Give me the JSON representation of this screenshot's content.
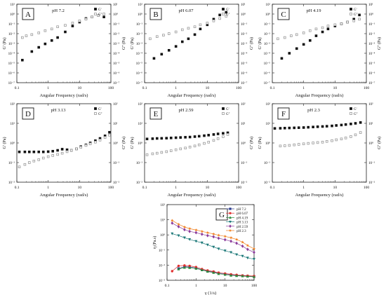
{
  "figure": {
    "panel_count": 7
  },
  "chart_data": [
    {
      "id": "A",
      "type": "scatter",
      "title": "pH 7.2",
      "xlabel": "Angular Frequency (rad/s)",
      "ylabel_left": "G' (Pa)",
      "ylabel_right": "G'' (Pa)",
      "xscale": "log",
      "yscale": "log",
      "xlim": [
        0.1,
        100
      ],
      "ylim": [
        1e-07,
        10
      ],
      "xticks": [
        "0.1",
        "1",
        "10",
        "100"
      ],
      "yticks": [
        "10⁻⁷",
        "10⁻⁶",
        "10⁻⁵",
        "10⁻⁴",
        "10⁻³",
        "10⁻²",
        "10⁻¹",
        "10⁰",
        "10¹"
      ],
      "legend": [
        "G'",
        "G''"
      ],
      "legend_position": "top-right",
      "series": [
        {
          "name": "G'",
          "marker": "filled-square",
          "x": [
            0.15,
            0.3,
            0.5,
            0.8,
            1.3,
            2,
            3.5,
            6,
            10,
            16,
            25,
            40,
            60
          ],
          "y": [
            2e-05,
            0.00015,
            0.0004,
            0.0009,
            0.002,
            0.004,
            0.015,
            0.06,
            0.15,
            0.35,
            0.5,
            0.7,
            0.5
          ]
        },
        {
          "name": "G''",
          "marker": "open-square",
          "x": [
            0.15,
            0.2,
            0.3,
            0.5,
            0.8,
            1.3,
            2,
            3.5,
            6,
            10,
            16,
            25,
            40,
            60
          ],
          "y": [
            0.004,
            0.006,
            0.008,
            0.012,
            0.02,
            0.03,
            0.05,
            0.07,
            0.12,
            0.2,
            0.3,
            0.5,
            0.7,
            1
          ]
        }
      ]
    },
    {
      "id": "B",
      "type": "scatter",
      "title": "pH 6.07",
      "xlabel": "Angular Frequency (rad/s)",
      "ylabel_left": "G' (Pa)",
      "ylabel_right": "G'' (Pa)",
      "xscale": "log",
      "yscale": "log",
      "xlim": [
        0.1,
        100
      ],
      "ylim": [
        1e-07,
        10
      ],
      "xticks": [
        "0.1",
        "1",
        "10",
        "100"
      ],
      "yticks": [
        "10⁻⁷",
        "10⁻⁶",
        "10⁻⁵",
        "10⁻⁴",
        "10⁻³",
        "10⁻²",
        "10⁻¹",
        "10⁰",
        "10¹"
      ],
      "legend": [
        "G'",
        "G''"
      ],
      "legend_position": "top-right",
      "series": [
        {
          "name": "G'",
          "marker": "filled-square",
          "x": [
            0.2,
            0.35,
            0.6,
            1,
            1.6,
            2.5,
            4,
            6,
            10,
            16,
            25,
            40
          ],
          "y": [
            3e-05,
            8e-05,
            0.0002,
            0.0005,
            0.0015,
            0.003,
            0.008,
            0.03,
            0.08,
            0.3,
            0.8,
            1.5
          ]
        },
        {
          "name": "G''",
          "marker": "open-square",
          "x": [
            0.15,
            0.25,
            0.4,
            0.6,
            1,
            1.6,
            2.5,
            4,
            6,
            10,
            16,
            25,
            40
          ],
          "y": [
            0.003,
            0.005,
            0.007,
            0.01,
            0.015,
            0.025,
            0.035,
            0.05,
            0.08,
            0.12,
            0.2,
            0.35,
            0.6
          ]
        }
      ]
    },
    {
      "id": "C",
      "type": "scatter",
      "title": "pH 4.19",
      "xlabel": "Angular Frequency (rad/s)",
      "ylabel_left": "G' (Pa)",
      "ylabel_right": "G'' (Pa)",
      "xscale": "log",
      "yscale": "log",
      "xlim": [
        0.1,
        100
      ],
      "ylim": [
        1e-07,
        10
      ],
      "xticks": [
        "0.1",
        "1",
        "10",
        "100"
      ],
      "yticks": [
        "10⁻⁷",
        "10⁻⁶",
        "10⁻⁵",
        "10⁻⁴",
        "10⁻³",
        "10⁻²",
        "10⁻¹",
        "10⁰",
        "10¹"
      ],
      "legend": [
        "G'",
        "G''"
      ],
      "legend_position": "top-right",
      "series": [
        {
          "name": "G'",
          "marker": "filled-square",
          "x": [
            0.2,
            0.35,
            0.6,
            1,
            1.6,
            2.5,
            4,
            6,
            10,
            16,
            25,
            40,
            60
          ],
          "y": [
            3e-05,
            0.0001,
            0.0003,
            0.0008,
            0.002,
            0.006,
            0.015,
            0.03,
            0.06,
            0.1,
            0.15,
            0.3,
            0.8
          ]
        },
        {
          "name": "G''",
          "marker": "open-square",
          "x": [
            0.15,
            0.25,
            0.4,
            0.6,
            1,
            1.6,
            2.5,
            4,
            6,
            10,
            16,
            25,
            40,
            60
          ],
          "y": [
            0.003,
            0.004,
            0.006,
            0.008,
            0.012,
            0.02,
            0.03,
            0.04,
            0.06,
            0.08,
            0.1,
            0.15,
            0.2,
            0.3
          ]
        }
      ]
    },
    {
      "id": "D",
      "type": "scatter",
      "title": "pH 3.13",
      "xlabel": "Angular Frequency (rad/s)",
      "ylabel_left": "G' (Pa)",
      "ylabel_right": "G'' (Pa)",
      "xscale": "log",
      "yscale": "log",
      "xlim": [
        0.1,
        100
      ],
      "ylim": [
        0.01,
        100
      ],
      "xticks": [
        "0.1",
        "1",
        "10",
        "100"
      ],
      "yticks": [
        "10⁻²",
        "10⁻¹",
        "10⁰",
        "10¹",
        "10²"
      ],
      "legend": [
        "G'",
        "G''"
      ],
      "legend_position": "top-right",
      "series": [
        {
          "name": "G'",
          "marker": "filled-square",
          "x": [
            0.12,
            0.18,
            0.25,
            0.35,
            0.5,
            0.7,
            1,
            1.4,
            2,
            2.8,
            4,
            5.5,
            8,
            11,
            16,
            22,
            32,
            45,
            65,
            90
          ],
          "y": [
            0.35,
            0.35,
            0.35,
            0.35,
            0.35,
            0.35,
            0.36,
            0.38,
            0.42,
            0.48,
            0.45,
            0.42,
            0.5,
            0.65,
            0.8,
            1,
            1.3,
            1.7,
            2.3,
            3.5
          ]
        },
        {
          "name": "G''",
          "marker": "open-square",
          "x": [
            0.12,
            0.18,
            0.25,
            0.35,
            0.5,
            0.7,
            1,
            1.4,
            2,
            2.8,
            4,
            5.5,
            8,
            11,
            16,
            22,
            32,
            45,
            65,
            90
          ],
          "y": [
            0.06,
            0.08,
            0.1,
            0.12,
            0.14,
            0.17,
            0.2,
            0.23,
            0.26,
            0.3,
            0.36,
            0.42,
            0.5,
            0.6,
            0.75,
            0.9,
            1.1,
            1.4,
            1.9,
            2.5
          ]
        }
      ]
    },
    {
      "id": "E",
      "type": "scatter",
      "title": "pH 2.59",
      "xlabel": "Angular Frequency (rad/s)",
      "ylabel_left": "G' (Pa)",
      "ylabel_right": "G'' (Pa)",
      "xscale": "log",
      "yscale": "log",
      "xlim": [
        0.1,
        100
      ],
      "ylim": [
        0.01,
        100
      ],
      "xticks": [
        "0.1",
        "1",
        "10",
        "100"
      ],
      "yticks": [
        "10⁻²",
        "10⁻¹",
        "10⁰",
        "10¹",
        "10²"
      ],
      "legend": [
        "G'",
        "G''"
      ],
      "legend_position": "top-right",
      "series": [
        {
          "name": "G'",
          "marker": "filled-square",
          "x": [
            0.12,
            0.18,
            0.25,
            0.35,
            0.5,
            0.7,
            1,
            1.4,
            2,
            2.8,
            4,
            5.5,
            8,
            11,
            16,
            22,
            32,
            45
          ],
          "y": [
            1.6,
            1.65,
            1.7,
            1.72,
            1.75,
            1.8,
            1.85,
            1.9,
            1.95,
            2.0,
            2.1,
            2.2,
            2.35,
            2.5,
            2.7,
            2.9,
            3.1,
            3.3
          ]
        },
        {
          "name": "G''",
          "marker": "open-square",
          "x": [
            0.12,
            0.18,
            0.25,
            0.35,
            0.5,
            0.7,
            1,
            1.4,
            2,
            2.8,
            4,
            5.5,
            8,
            11,
            16,
            22,
            32,
            45
          ],
          "y": [
            0.25,
            0.28,
            0.3,
            0.33,
            0.36,
            0.4,
            0.45,
            0.5,
            0.55,
            0.62,
            0.7,
            0.8,
            0.95,
            1.1,
            1.35,
            1.65,
            2.1,
            2.7
          ]
        }
      ]
    },
    {
      "id": "F",
      "type": "scatter",
      "title": "pH 2.3",
      "xlabel": "Angular Frequency (rad/s)",
      "ylabel_left": "G' (Pa)",
      "ylabel_right": "G'' (Pa)",
      "xscale": "log",
      "yscale": "log",
      "xlim": [
        0.1,
        100
      ],
      "ylim": [
        0.01,
        100
      ],
      "xticks": [
        "0.1",
        "1",
        "10",
        "100"
      ],
      "yticks": [
        "10⁻²",
        "10⁻¹",
        "10⁰",
        "10¹",
        "10²"
      ],
      "legend": [
        "G'",
        "G''"
      ],
      "legend_position": "top-right",
      "series": [
        {
          "name": "G'",
          "marker": "filled-square",
          "x": [
            0.12,
            0.18,
            0.25,
            0.35,
            0.5,
            0.7,
            1,
            1.4,
            2,
            2.8,
            4,
            5.5,
            8,
            11,
            16,
            22,
            32,
            45,
            65
          ],
          "y": [
            5.5,
            5.6,
            5.7,
            5.8,
            5.9,
            6,
            6.1,
            6.3,
            6.5,
            6.7,
            6.9,
            7.1,
            7.4,
            7.8,
            8.2,
            8.7,
            9.3,
            10,
            11
          ]
        },
        {
          "name": "G''",
          "marker": "open-square",
          "x": [
            0.18,
            0.25,
            0.35,
            0.5,
            0.7,
            1,
            1.4,
            2,
            2.8,
            4,
            5.5,
            8,
            11,
            16,
            22,
            32,
            45,
            65
          ],
          "y": [
            0.7,
            0.72,
            0.75,
            0.8,
            0.85,
            0.9,
            0.95,
            1.0,
            1.05,
            1.1,
            1.2,
            1.3,
            1.45,
            1.6,
            1.8,
            2.1,
            2.6,
            3.4
          ]
        }
      ]
    },
    {
      "id": "G",
      "type": "line",
      "xlabel": "γ (1/s)",
      "ylabel": "η (Pa.s)",
      "xscale": "log",
      "yscale": "log",
      "xlim": [
        0.1,
        100
      ],
      "ylim": [
        0.001,
        100
      ],
      "xticks": [
        "0.1",
        "1",
        "10",
        "100"
      ],
      "yticks": [
        "10⁻³",
        "10⁻²",
        "10⁻¹",
        "10⁰",
        "10¹",
        "10²"
      ],
      "legend_position": "top-right",
      "series": [
        {
          "name": "pH 7.2",
          "color": "#2b3a8c",
          "marker": "square",
          "x": [
            0.25,
            0.4,
            0.6,
            1,
            1.6,
            2.5,
            4,
            6,
            10,
            16,
            25,
            40,
            60,
            100
          ],
          "y": [
            0.006,
            0.008,
            0.0075,
            0.0065,
            0.005,
            0.004,
            0.0035,
            0.003,
            0.0026,
            0.0023,
            0.0021,
            0.002,
            0.0019,
            0.0018
          ]
        },
        {
          "name": "pH 6.07",
          "color": "#e03030",
          "marker": "circle",
          "x": [
            0.15,
            0.25,
            0.4,
            0.6,
            1,
            1.6,
            2.5,
            4,
            6,
            10,
            16,
            25,
            40,
            60,
            100
          ],
          "y": [
            0.004,
            0.009,
            0.0095,
            0.009,
            0.0075,
            0.0055,
            0.0045,
            0.0038,
            0.0032,
            0.0028,
            0.0025,
            0.0023,
            0.0021,
            0.002,
            0.0019
          ]
        },
        {
          "name": "pH 4.19",
          "color": "#2a8a3a",
          "marker": "triangle-up",
          "x": [
            0.25,
            0.4,
            0.6,
            1,
            1.6,
            2.5,
            4,
            6,
            10,
            16,
            25,
            40,
            60,
            100
          ],
          "y": [
            0.0055,
            0.007,
            0.0068,
            0.006,
            0.0048,
            0.0038,
            0.0032,
            0.0027,
            0.0024,
            0.0021,
            0.002,
            0.0019,
            0.0018,
            0.0017
          ]
        },
        {
          "name": "pH 3.13",
          "color": "#1f7a7a",
          "marker": "triangle-down",
          "x": [
            0.15,
            0.25,
            0.4,
            0.6,
            1,
            1.6,
            2.5,
            4,
            6,
            10,
            16,
            25,
            40,
            60,
            100
          ],
          "y": [
            1.2,
            0.9,
            0.65,
            0.5,
            0.38,
            0.3,
            0.22,
            0.16,
            0.12,
            0.09,
            0.07,
            0.05,
            0.04,
            0.03,
            0.025
          ]
        },
        {
          "name": "pH 2.59",
          "color": "#8a3a9a",
          "marker": "diamond",
          "x": [
            0.15,
            0.25,
            0.4,
            0.6,
            1,
            1.6,
            2.5,
            4,
            6,
            10,
            16,
            25,
            40,
            60,
            100
          ],
          "y": [
            6,
            3.5,
            2.2,
            1.7,
            1.4,
            1.1,
            0.9,
            0.75,
            0.6,
            0.48,
            0.38,
            0.28,
            0.18,
            0.11,
            0.07
          ]
        },
        {
          "name": "pH 2.3",
          "color": "#f08020",
          "marker": "star",
          "x": [
            0.15,
            0.25,
            0.4,
            0.6,
            1,
            1.6,
            2.5,
            4,
            6,
            10,
            16,
            25,
            40,
            60,
            100
          ],
          "y": [
            9,
            5,
            3.3,
            2.6,
            2.1,
            1.7,
            1.4,
            1.15,
            0.95,
            0.8,
            0.65,
            0.5,
            0.33,
            0.2,
            0.12
          ]
        }
      ]
    }
  ]
}
